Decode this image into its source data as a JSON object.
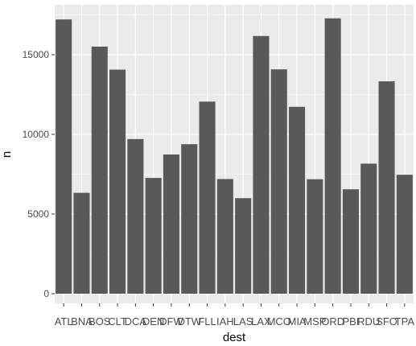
{
  "chart_data": {
    "type": "bar",
    "xlabel": "dest",
    "ylabel": "n",
    "categories": [
      "ATL",
      "BNA",
      "BOS",
      "CLT",
      "DCA",
      "DEN",
      "DFW",
      "DTW",
      "FLL",
      "IAH",
      "LAS",
      "LAX",
      "MCO",
      "MIA",
      "MSP",
      "ORD",
      "PBI",
      "RDU",
      "SFO",
      "TPA"
    ],
    "values": [
      17215,
      6333,
      15508,
      14064,
      9705,
      7266,
      8738,
      9384,
      12055,
      7198,
      5997,
      16174,
      14082,
      11728,
      7185,
      17283,
      6554,
      8163,
      13331,
      7466
    ],
    "ylim": [
      0,
      18000
    ],
    "yticks": [
      0,
      5000,
      10000,
      15000
    ],
    "ytick_labels": [
      "0",
      "5000",
      "10000",
      "15000"
    ],
    "grid": true,
    "panel_color": "#ebebeb",
    "grid_color": "#ffffff",
    "bar_color": "#595959",
    "axis_text_color": "#4d4d4d"
  }
}
